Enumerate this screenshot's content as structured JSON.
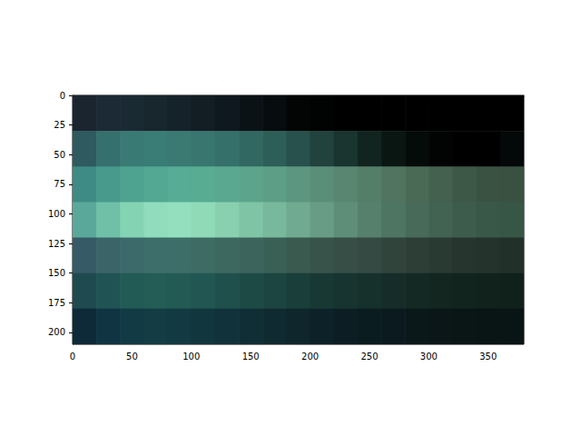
{
  "chart_data": {
    "type": "image",
    "x_edges": [
      0,
      20,
      40,
      60,
      80,
      100,
      120,
      140,
      160,
      180,
      200,
      220,
      240,
      260,
      280,
      300,
      320,
      340,
      360,
      380
    ],
    "y_edges": [
      0,
      30,
      60,
      90,
      120,
      150,
      180,
      210
    ],
    "colors": [
      [
        "#1a2530",
        "#1c2a35",
        "#1a2a33",
        "#18262e",
        "#15222a",
        "#121d24",
        "#0f181e",
        "#0a1216",
        "#070c0e",
        "#030505",
        "#010202",
        "#000000",
        "#000000",
        "#000000",
        "#000000",
        "#000000",
        "#000000",
        "#000000",
        "#000000"
      ],
      [
        "#2e5a60",
        "#36706e",
        "#3a7a75",
        "#3a7c76",
        "#3a7a73",
        "#38766f",
        "#35706a",
        "#326862",
        "#2e5e58",
        "#28504c",
        "#22423e",
        "#1a3430",
        "#12241f",
        "#0a1612",
        "#050b09",
        "#020404",
        "#000000",
        "#000000",
        "#050808"
      ],
      [
        "#3e8a84",
        "#479a8c",
        "#4ea290",
        "#52a892",
        "#56ac94",
        "#58ac92",
        "#5aa890",
        "#5ca48c",
        "#5c9e86",
        "#5c9680",
        "#5a8e78",
        "#588670",
        "#557e68",
        "#507460",
        "#4a6a56",
        "#44604e",
        "#3e5848",
        "#3a5242",
        "#3a5040"
      ],
      [
        "#5aa89a",
        "#70c0a8",
        "#84d4b4",
        "#90dcbc",
        "#94e0be",
        "#90dab8",
        "#88d0b0",
        "#80c4a6",
        "#78b89c",
        "#70aa90",
        "#689c84",
        "#5e8e78",
        "#56806c",
        "#4e7462",
        "#486a58",
        "#426252",
        "#3e5c4c",
        "#3a5848",
        "#385646"
      ],
      [
        "#365a66",
        "#3a6468",
        "#3c6a6a",
        "#3e6e6a",
        "#3e6e68",
        "#3e6c64",
        "#3c6860",
        "#3c645c",
        "#3a6056",
        "#3a5a50",
        "#38544a",
        "#364e46",
        "#344a42",
        "#30443c",
        "#2c3e36",
        "#283a32",
        "#26362e",
        "#24342c",
        "#22302a"
      ],
      [
        "#1e4a50",
        "#205454",
        "#225a56",
        "#245c56",
        "#245a54",
        "#225652",
        "#20504c",
        "#1e4a46",
        "#1c4440",
        "#1a3e3a",
        "#183834",
        "#173430",
        "#16302c",
        "#152c28",
        "#142824",
        "#132620",
        "#12241e",
        "#11221c",
        "#10201a"
      ],
      [
        "#0e2a38",
        "#103442",
        "#123a44",
        "#133c44",
        "#133a42",
        "#12363e",
        "#11323a",
        "#102e36",
        "#0f2a30",
        "#0e262c",
        "#0d2228",
        "#0c1e24",
        "#0b1c20",
        "#0b1a1e",
        "#0a181a",
        "#0a1618",
        "#0a1616",
        "#091414",
        "#091414"
      ]
    ],
    "xlim": [
      0,
      380
    ],
    "ylim": [
      0,
      210
    ],
    "xticks": [
      0,
      50,
      100,
      150,
      200,
      250,
      300,
      350
    ],
    "yticks": [
      0,
      25,
      50,
      75,
      100,
      125,
      150,
      175,
      200
    ]
  }
}
